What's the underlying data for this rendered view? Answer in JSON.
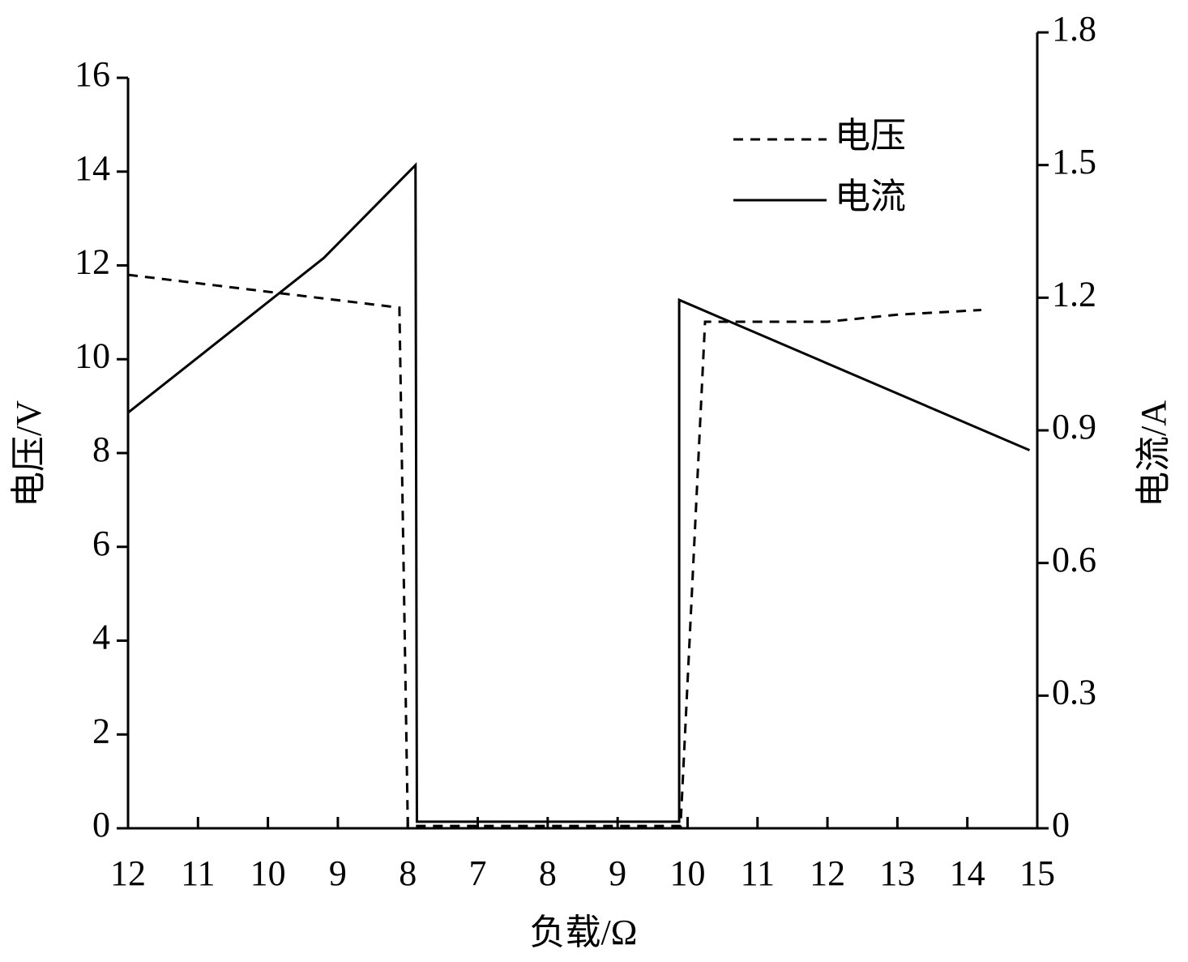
{
  "chart_data": {
    "type": "line",
    "xlabel": "负载/Ω",
    "ylabel": "电压/V",
    "y2label": "电流/A",
    "xlim": [
      0,
      13
    ],
    "xticks": [
      {
        "value": 0,
        "label": "12"
      },
      {
        "value": 1,
        "label": "11"
      },
      {
        "value": 2,
        "label": "10"
      },
      {
        "value": 3,
        "label": "9"
      },
      {
        "value": 4,
        "label": "8"
      },
      {
        "value": 5,
        "label": "7"
      },
      {
        "value": 6,
        "label": "8"
      },
      {
        "value": 7,
        "label": "9"
      },
      {
        "value": 8,
        "label": "10"
      },
      {
        "value": 9,
        "label": "11"
      },
      {
        "value": 10,
        "label": "12"
      },
      {
        "value": 11,
        "label": "13"
      },
      {
        "value": 12,
        "label": "14"
      },
      {
        "value": 13,
        "label": "15"
      }
    ],
    "ylim": [
      0,
      16
    ],
    "yticks": [
      0,
      2,
      4,
      6,
      8,
      10,
      12,
      14,
      16
    ],
    "y2lim": [
      0,
      1.8
    ],
    "y2ticks": [
      0,
      0.3,
      0.6,
      0.9,
      1.2,
      1.5,
      1.8
    ],
    "legend": "upper-right",
    "series": [
      {
        "name": "电压",
        "color": "#000000",
        "dash": true,
        "x": [
          0,
          1.94,
          3.88,
          4.0,
          7.9,
          8.25,
          8.4,
          10.0,
          11.0,
          12.2
        ],
        "values": [
          11.8,
          11.45,
          11.1,
          0.05,
          0.05,
          10.8,
          10.8,
          10.8,
          10.95,
          11.05
        ]
      },
      {
        "name": "电流",
        "color": "#000000",
        "dash": false,
        "axis": "y2",
        "x": [
          0,
          2.8,
          4.11,
          4.13,
          7.88,
          7.88,
          12.89
        ],
        "values": [
          0.94,
          1.29,
          1.5,
          0.015,
          0.015,
          1.195,
          0.855
        ]
      }
    ]
  }
}
